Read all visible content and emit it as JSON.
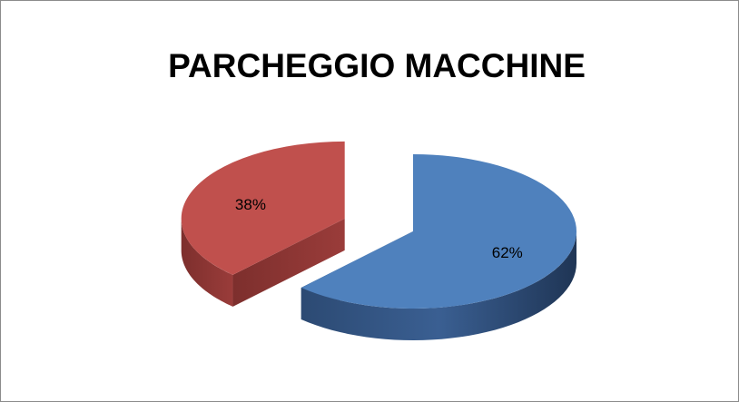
{
  "chart_data": {
    "type": "pie",
    "title": "PARCHEGGIO MACCHINE",
    "values": [
      62,
      38
    ],
    "value_labels": [
      "62%",
      "38%"
    ],
    "colors": [
      "#4f81bd",
      "#c0504d"
    ]
  }
}
